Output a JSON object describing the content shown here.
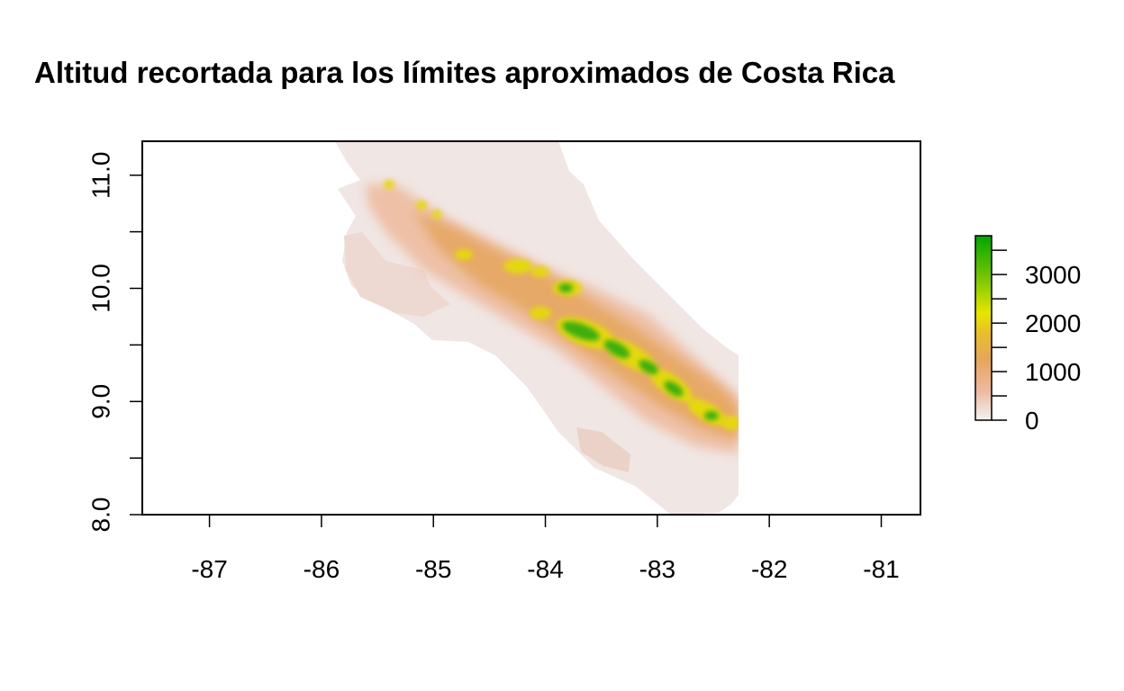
{
  "title": "Altitud recortada para los límites aproximados de Costa Rica",
  "map": {
    "x_axis": {
      "range": [
        -87.6,
        -80.65
      ],
      "ticks": [
        "-87",
        "-86",
        "-85",
        "-84",
        "-83",
        "-82",
        "-81"
      ],
      "tick_values": [
        -87,
        -86,
        -85,
        -84,
        -83,
        -82,
        -81
      ]
    },
    "y_axis": {
      "range": [
        8.0,
        11.3
      ],
      "ticks": [
        "8.0",
        "9.0",
        "10.0",
        "11.0"
      ],
      "tick_values": [
        8.0,
        9.0,
        10.0,
        11.0
      ],
      "minor_tick_values": [
        8.5,
        9.5,
        10.5
      ]
    },
    "raster_extent": {
      "lon": [
        -86.75,
        -82.3
      ],
      "lat": [
        8.0,
        11.3
      ]
    },
    "legend": {
      "ticks": [
        "0",
        "1000",
        "2000",
        "3000"
      ],
      "tick_values": [
        0,
        1000,
        2000,
        3000
      ],
      "range": [
        0,
        3800
      ],
      "colors": [
        "#f2f2f2",
        "#eeb99f",
        "#e6a65a",
        "#e9c02a",
        "#e6e600",
        "#74c404",
        "#00a600"
      ]
    }
  },
  "chart_data": {
    "type": "heatmap",
    "title": "Altitud recortada para los límites aproximados de Costa Rica",
    "xlabel": "",
    "ylabel": "",
    "xlim": [
      -87.6,
      -80.65
    ],
    "ylim": [
      8.0,
      11.3
    ],
    "value_range": [
      0,
      3800
    ],
    "color_scale": [
      "#f2f2f2",
      "#eeb99f",
      "#e6a65a",
      "#e9c02a",
      "#e6e600",
      "#74c404",
      "#00a600"
    ],
    "legend_ticks": [
      0,
      1000,
      2000,
      3000
    ],
    "grid": false,
    "legend_placement": "right"
  }
}
